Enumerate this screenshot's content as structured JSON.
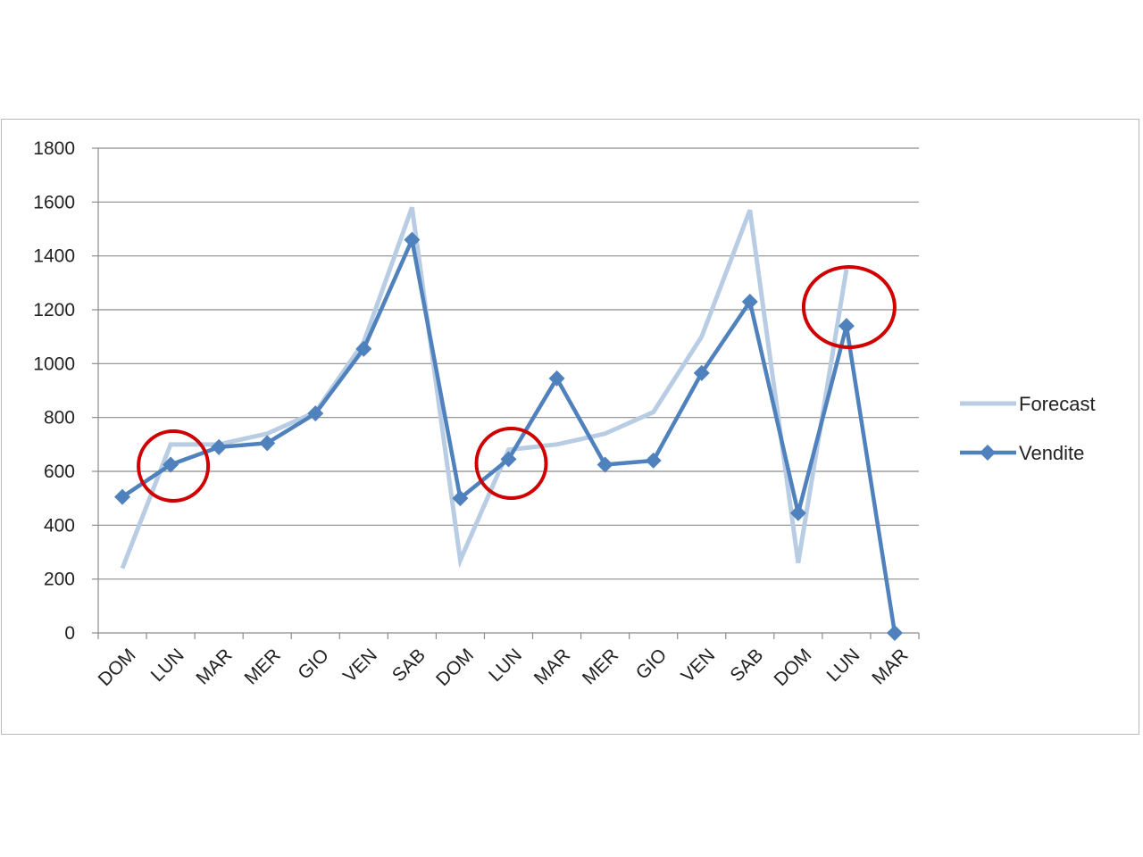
{
  "chart_data": {
    "type": "line",
    "title": "",
    "xlabel": "",
    "ylabel": "",
    "categories": [
      "DOM",
      "LUN",
      "MAR",
      "MER",
      "GIO",
      "VEN",
      "SAB",
      "DOM",
      "LUN",
      "MAR",
      "MER",
      "GIO",
      "VEN",
      "SAB",
      "DOM",
      "LUN",
      "MAR"
    ],
    "ylim": [
      0,
      1800
    ],
    "yticks": [
      0,
      200,
      400,
      600,
      800,
      1000,
      1200,
      1400,
      1600,
      1800
    ],
    "grid": "horizontal",
    "legend": "right",
    "series": [
      {
        "name": "Forecast",
        "color": "#b8cce4",
        "marker": "none",
        "values": [
          240,
          700,
          700,
          740,
          820,
          1080,
          1580,
          270,
          680,
          700,
          740,
          820,
          1100,
          1570,
          260,
          1350,
          null
        ]
      },
      {
        "name": "Vendite",
        "color": "#4f81bd",
        "marker": "diamond",
        "values": [
          505,
          625,
          690,
          705,
          815,
          1055,
          1460,
          500,
          645,
          945,
          625,
          640,
          965,
          1230,
          445,
          1140,
          0
        ]
      }
    ],
    "annotations": [
      {
        "shape": "circle",
        "color": "#d00000",
        "category_index": 1,
        "y": 620
      },
      {
        "shape": "circle",
        "color": "#d00000",
        "category_index": 8,
        "y": 630
      },
      {
        "shape": "circle",
        "color": "#d00000",
        "category_index": 15,
        "y": 1210
      }
    ]
  }
}
